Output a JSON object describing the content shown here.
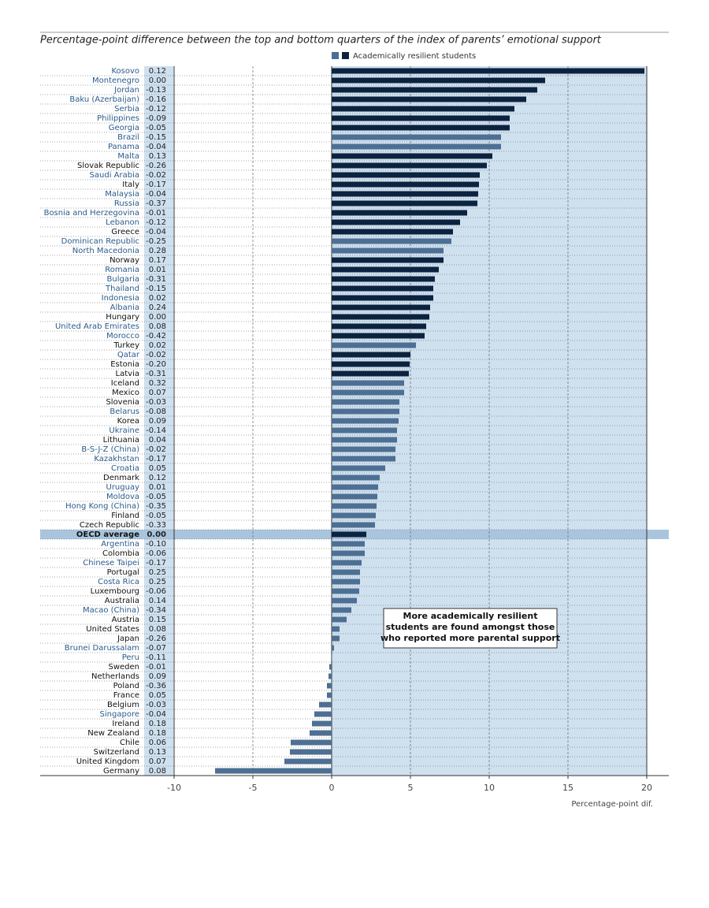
{
  "chart_data": {
    "type": "bar",
    "orientation": "horizontal",
    "title": "Percentage-point difference between the top and bottom quarters of the index of parents’ emotional support",
    "legend": "Academically resilient students",
    "legend_colors": [
      "#4d6f93",
      "#0c2340"
    ],
    "x_label": "Percentage-point dif.",
    "annotation": "More academically resilient students are found amongst those who reported more parental support",
    "categories": [
      "Kosovo",
      "Montenegro",
      "Jordan",
      "Baku (Azerbaijan)",
      "Serbia",
      "Philippines",
      "Georgia",
      "Brazil",
      "Panama",
      "Malta",
      "Slovak Republic",
      "Saudi Arabia",
      "Italy",
      "Malaysia",
      "Russia",
      "Bosnia and Herzegovina",
      "Lebanon",
      "Greece",
      "Dominican Republic",
      "North Macedonia",
      "Norway",
      "Romania",
      "Bulgaria",
      "Thailand",
      "Indonesia",
      "Albania",
      "Hungary",
      "United Arab Emirates",
      "Morocco",
      "Turkey",
      "Qatar",
      "Estonia",
      "Latvia",
      "Iceland",
      "Mexico",
      "Slovenia",
      "Belarus",
      "Korea",
      "Ukraine",
      "Lithuania",
      "B-S-J-Z (China)",
      "Kazakhstan",
      "Croatia",
      "Denmark",
      "Uruguay",
      "Moldova",
      "Hong Kong (China)",
      "Finland",
      "Czech Republic",
      "OECD average",
      "Argentina",
      "Colombia",
      "Chinese Taipei",
      "Portugal",
      "Costa Rica",
      "Luxembourg",
      "Australia",
      "Macao (China)",
      "Austria",
      "United States",
      "Japan",
      "Brunei Darussalam",
      "Peru",
      "Sweden",
      "Netherlands",
      "Poland",
      "France",
      "Belgium",
      "Singapore",
      "Ireland",
      "New Zealand",
      "Chile",
      "Switzerland",
      "United Kingdom",
      "Germany"
    ],
    "column_values": [
      "0.12",
      "0.00",
      "-0.13",
      "-0.16",
      "-0.12",
      "-0.09",
      "-0.05",
      "-0.15",
      "-0.04",
      "0.13",
      "-0.26",
      "-0.02",
      "-0.17",
      "-0.04",
      "-0.37",
      "-0.01",
      "-0.12",
      "-0.04",
      "-0.25",
      "0.28",
      "0.17",
      "0.01",
      "-0.31",
      "-0.15",
      "0.02",
      "0.24",
      "0.00",
      "0.08",
      "-0.42",
      "0.02",
      "-0.02",
      "-0.20",
      "-0.31",
      "0.32",
      "0.07",
      "-0.03",
      "-0.08",
      "0.09",
      "-0.14",
      "0.04",
      "-0.02",
      "-0.17",
      "0.05",
      "0.12",
      "0.01",
      "-0.05",
      "-0.35",
      "-0.05",
      "-0.33",
      "0.00",
      "-0.10",
      "-0.06",
      "-0.17",
      "0.25",
      "0.25",
      "-0.06",
      "0.14",
      "-0.34",
      "0.15",
      "0.08",
      "-0.26",
      "-0.07",
      "-0.11",
      "-0.01",
      "0.09",
      "-0.36",
      "0.05",
      "-0.03",
      "-0.04",
      "0.18",
      "0.18",
      "0.06",
      "0.13",
      "0.07",
      "0.08"
    ],
    "values": [
      19.85,
      13.55,
      13.05,
      12.35,
      11.6,
      11.3,
      11.3,
      10.75,
      10.75,
      10.2,
      9.85,
      9.4,
      9.35,
      9.3,
      9.25,
      8.6,
      8.15,
      7.7,
      7.6,
      7.1,
      7.1,
      6.8,
      6.55,
      6.45,
      6.45,
      6.25,
      6.2,
      6.0,
      5.9,
      5.35,
      5.0,
      4.95,
      4.9,
      4.6,
      4.6,
      4.3,
      4.3,
      4.25,
      4.15,
      4.15,
      4.05,
      4.05,
      3.4,
      3.05,
      2.95,
      2.9,
      2.85,
      2.8,
      2.75,
      2.2,
      2.1,
      2.1,
      1.9,
      1.8,
      1.8,
      1.75,
      1.6,
      1.25,
      0.95,
      0.5,
      0.5,
      0.15,
      0.02,
      -0.15,
      -0.2,
      -0.3,
      -0.3,
      -0.8,
      -1.1,
      -1.25,
      -1.4,
      -2.6,
      -2.65,
      -3.0,
      -7.4
    ],
    "colors": [
      "#0c2340",
      "#0c2340",
      "#0c2340",
      "#0c2340",
      "#0c2340",
      "#0c2340",
      "#0c2340",
      "#4d6f93",
      "#4d6f93",
      "#0c2340",
      "#0c2340",
      "#0c2340",
      "#0c2340",
      "#0c2340",
      "#0c2340",
      "#0c2340",
      "#0c2340",
      "#0c2340",
      "#4d6f93",
      "#4d6f93",
      "#0c2340",
      "#0c2340",
      "#0c2340",
      "#0c2340",
      "#0c2340",
      "#0c2340",
      "#0c2340",
      "#0c2340",
      "#0c2340",
      "#4d6f93",
      "#0c2340",
      "#0c2340",
      "#0c2340",
      "#4d6f93",
      "#4d6f93",
      "#4d6f93",
      "#4d6f93",
      "#4d6f93",
      "#4d6f93",
      "#4d6f93",
      "#4d6f93",
      "#4d6f93",
      "#4d6f93",
      "#4d6f93",
      "#4d6f93",
      "#4d6f93",
      "#4d6f93",
      "#4d6f93",
      "#4d6f93",
      "#0c2340",
      "#4d6f93",
      "#4d6f93",
      "#4d6f93",
      "#4d6f93",
      "#4d6f93",
      "#4d6f93",
      "#4d6f93",
      "#4d6f93",
      "#4d6f93",
      "#4d6f93",
      "#4d6f93",
      "#4d6f93",
      "#4d6f93",
      "#4d6f93",
      "#4d6f93",
      "#4d6f93",
      "#4d6f93",
      "#4d6f93",
      "#4d6f93",
      "#4d6f93",
      "#4d6f93",
      "#4d6f93",
      "#4d6f93",
      "#4d6f93",
      "#4d6f93"
    ],
    "label_colors": [
      "#2a5b8c",
      "#2a5b8c",
      "#2a5b8c",
      "#2a5b8c",
      "#2a5b8c",
      "#2a5b8c",
      "#2a5b8c",
      "#2a5b8c",
      "#2a5b8c",
      "#2a5b8c",
      "#111",
      "#2a5b8c",
      "#111",
      "#2a5b8c",
      "#2a5b8c",
      "#2a5b8c",
      "#2a5b8c",
      "#111",
      "#2a5b8c",
      "#2a5b8c",
      "#111",
      "#2a5b8c",
      "#2a5b8c",
      "#2a5b8c",
      "#2a5b8c",
      "#2a5b8c",
      "#111",
      "#2a5b8c",
      "#2a5b8c",
      "#111",
      "#2a5b8c",
      "#111",
      "#111",
      "#111",
      "#111",
      "#111",
      "#2a5b8c",
      "#111",
      "#2a5b8c",
      "#111",
      "#2a5b8c",
      "#2a5b8c",
      "#2a5b8c",
      "#111",
      "#2a5b8c",
      "#2a5b8c",
      "#2a5b8c",
      "#111",
      "#111",
      "#111",
      "#2a5b8c",
      "#111",
      "#2a5b8c",
      "#111",
      "#2a5b8c",
      "#111",
      "#111",
      "#2a5b8c",
      "#111",
      "#111",
      "#111",
      "#2a5b8c",
      "#2a5b8c",
      "#111",
      "#111",
      "#111",
      "#111",
      "#111",
      "#2a5b8c",
      "#111",
      "#111",
      "#111",
      "#111",
      "#111",
      "#111"
    ],
    "highlight": "OECD average",
    "xlim": [
      -10,
      20
    ],
    "xticks": [
      -10,
      -5,
      0,
      5,
      10,
      15,
      20
    ],
    "grid": true
  }
}
